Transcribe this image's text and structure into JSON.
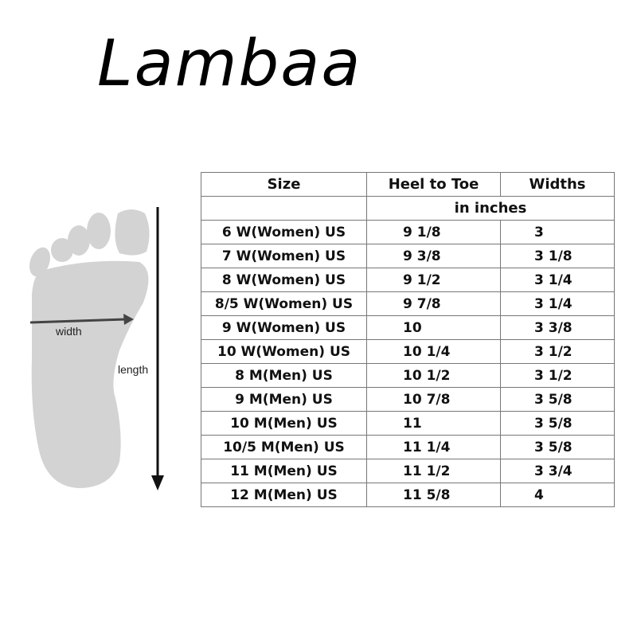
{
  "brand": "Lambaa",
  "diagram": {
    "width_label": "width",
    "length_label": "length",
    "foot_color": "#d3d3d3",
    "arrow_color": "#444444"
  },
  "table": {
    "headers": [
      "Size",
      "Heel to Toe",
      "Widths"
    ],
    "unit_note": "in inches",
    "rows": [
      {
        "size": "6 W(Women) US",
        "heel_to_toe": "9 1/8",
        "width": "3"
      },
      {
        "size": "7 W(Women) US",
        "heel_to_toe": "9 3/8",
        "width": "3 1/8"
      },
      {
        "size": "8 W(Women) US",
        "heel_to_toe": "9 1/2",
        "width": "3 1/4"
      },
      {
        "size": "8/5 W(Women) US",
        "heel_to_toe": "9 7/8",
        "width": "3 1/4"
      },
      {
        "size": "9 W(Women) US",
        "heel_to_toe": "10",
        "width": "3 3/8"
      },
      {
        "size": "10 W(Women) US",
        "heel_to_toe": "10 1/4",
        "width": "3 1/2"
      },
      {
        "size": "8 M(Men) US",
        "heel_to_toe": "10 1/2",
        "width": "3 1/2"
      },
      {
        "size": "9 M(Men) US",
        "heel_to_toe": "10 7/8",
        "width": "3 5/8"
      },
      {
        "size": "10 M(Men) US",
        "heel_to_toe": "11",
        "width": "3 5/8"
      },
      {
        "size": "10/5  M(Men) US",
        "heel_to_toe": "11 1/4",
        "width": "3 5/8"
      },
      {
        "size": "11 M(Men) US",
        "heel_to_toe": "11 1/2",
        "width": "3 3/4"
      },
      {
        "size": "12 M(Men) US",
        "heel_to_toe": "11 5/8",
        "width": "4"
      }
    ]
  }
}
